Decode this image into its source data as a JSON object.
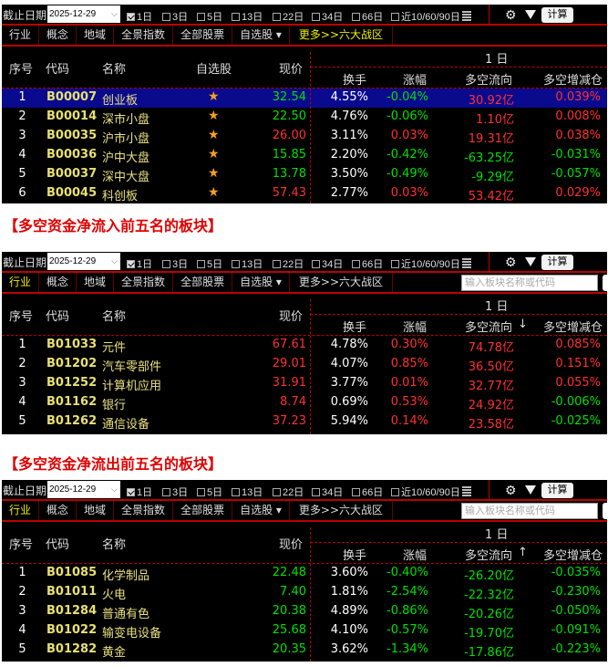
{
  "toolbar": {
    "date_label": "截止日期",
    "date_value": "2025-12-29",
    "periods": [
      {
        "label": "1日",
        "checked": true
      },
      {
        "label": "3日",
        "checked": false
      },
      {
        "label": "5日",
        "checked": false
      },
      {
        "label": "13日",
        "checked": false
      },
      {
        "label": "22日",
        "checked": false
      },
      {
        "label": "34日",
        "checked": false
      },
      {
        "label": "66日",
        "checked": false
      },
      {
        "label": "近10/60/90日",
        "checked": false
      }
    ],
    "calc_label": "计算",
    "icons": [
      "gear-icon",
      "filter-icon",
      "grid-icon"
    ]
  },
  "tabs": [
    "行业",
    "概念",
    "地域",
    "全景指数",
    "全部股票",
    "自选股 ▾",
    "更多>>六大战区"
  ],
  "search_placeholder": "输入板块名称或代码",
  "headers": {
    "seq": "序号",
    "code": "代码",
    "name": "名称",
    "watch": "自选股",
    "price": "现价",
    "period": "1 日",
    "turnover": "换手",
    "change": "涨幅",
    "flow": "多空流向",
    "position": "多空增减仓"
  },
  "unit": "亿",
  "colors": {
    "up": "#ff3030",
    "down": "#00e000",
    "accent": "#e00000",
    "selected": "#0a0a8e"
  },
  "heading1": "【多空资金净流入前五名的板块】",
  "heading2": "【多空资金净流出前五名的板块】",
  "panels": [
    {
      "active_tab": null,
      "sort": "",
      "show_watch": true,
      "rows": [
        {
          "seq": "1",
          "code": "B00007",
          "name": "创业板",
          "price": "32.54",
          "turnover": "4.55%",
          "change": "-0.04%",
          "flow": "30.92",
          "position": "0.039%",
          "selected": true
        },
        {
          "seq": "2",
          "code": "B00014",
          "name": "深市小盘",
          "price": "22.50",
          "turnover": "4.76%",
          "change": "-0.06%",
          "flow": "1.10",
          "position": "0.008%"
        },
        {
          "seq": "3",
          "code": "B00035",
          "name": "沪市小盘",
          "price": "26.00",
          "turnover": "3.11%",
          "change": "0.03%",
          "flow": "19.31",
          "position": "0.038%"
        },
        {
          "seq": "4",
          "code": "B00036",
          "name": "沪中大盘",
          "price": "15.85",
          "turnover": "2.20%",
          "change": "-0.42%",
          "flow": "-63.25",
          "position": "-0.031%"
        },
        {
          "seq": "5",
          "code": "B00037",
          "name": "深中大盘",
          "price": "13.78",
          "turnover": "3.50%",
          "change": "-0.49%",
          "flow": "-9.29",
          "position": "-0.057%"
        },
        {
          "seq": "6",
          "code": "B00045",
          "name": "科创板",
          "price": "57.43",
          "turnover": "2.77%",
          "change": "0.03%",
          "flow": "53.42",
          "position": "0.029%"
        }
      ]
    },
    {
      "active_tab": 0,
      "sort": "↓",
      "show_watch": false,
      "rows": [
        {
          "seq": "1",
          "code": "B01033",
          "name": "元件",
          "price": "67.61",
          "turnover": "4.78%",
          "change": "0.30%",
          "flow": "74.78",
          "position": "0.085%"
        },
        {
          "seq": "2",
          "code": "B01202",
          "name": "汽车零部件",
          "price": "29.01",
          "turnover": "4.07%",
          "change": "0.85%",
          "flow": "36.50",
          "position": "0.151%"
        },
        {
          "seq": "3",
          "code": "B01252",
          "name": "计算机应用",
          "price": "31.91",
          "turnover": "3.77%",
          "change": "0.01%",
          "flow": "32.77",
          "position": "0.055%"
        },
        {
          "seq": "4",
          "code": "B01162",
          "name": "银行",
          "price": "8.74",
          "turnover": "0.69%",
          "change": "0.53%",
          "flow": "24.92",
          "position": "-0.006%"
        },
        {
          "seq": "5",
          "code": "B01262",
          "name": "通信设备",
          "price": "37.23",
          "turnover": "5.94%",
          "change": "0.14%",
          "flow": "23.58",
          "position": "-0.025%"
        }
      ]
    },
    {
      "active_tab": 0,
      "sort": "↑",
      "show_watch": false,
      "rows": [
        {
          "seq": "1",
          "code": "B01085",
          "name": "化学制品",
          "price": "22.48",
          "turnover": "3.60%",
          "change": "-0.40%",
          "flow": "-26.20",
          "position": "-0.035%"
        },
        {
          "seq": "2",
          "code": "B01011",
          "name": "火电",
          "price": "7.40",
          "turnover": "1.81%",
          "change": "-2.54%",
          "flow": "-22.32",
          "position": "-0.230%"
        },
        {
          "seq": "3",
          "code": "B01284",
          "name": "普通有色",
          "price": "20.38",
          "turnover": "4.89%",
          "change": "-0.86%",
          "flow": "-20.26",
          "position": "-0.050%"
        },
        {
          "seq": "4",
          "code": "B01022",
          "name": "输变电设备",
          "price": "25.68",
          "turnover": "4.10%",
          "change": "-0.57%",
          "flow": "-19.70",
          "position": "-0.091%"
        },
        {
          "seq": "5",
          "code": "B01282",
          "name": "黄金",
          "price": "20.35",
          "turnover": "3.62%",
          "change": "-1.34%",
          "flow": "-17.86",
          "position": "-0.223%"
        }
      ]
    }
  ]
}
